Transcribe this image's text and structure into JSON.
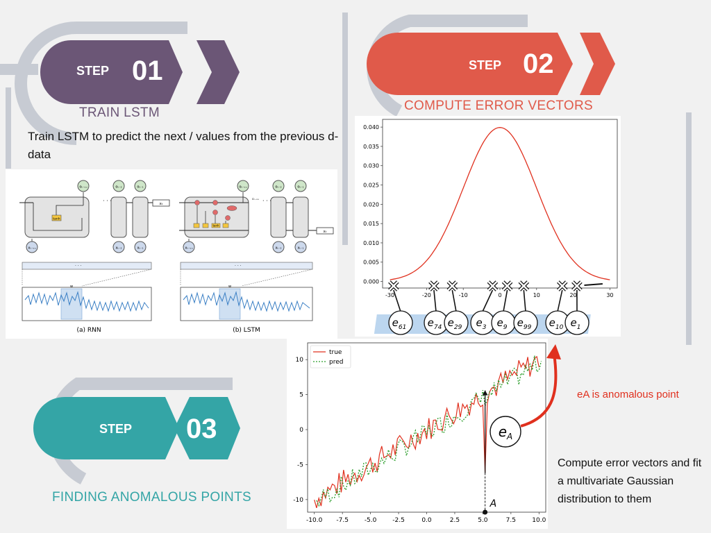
{
  "colors": {
    "step1": "#6b5676",
    "step2": "#e05a4a",
    "step3": "#34a5a6",
    "arc": "#c7cbd3",
    "red_curve": "#e0301e",
    "pred_green": "#2a9d2a",
    "blue_line": "#3a7fc4",
    "light_blue": "#bcd6ef"
  },
  "step1": {
    "word": "STEP",
    "number": "01",
    "title": "TRAIN LSTM",
    "description": "Train LSTM to predict the next / values from the previous d-data"
  },
  "step2": {
    "word": "STEP",
    "number": "02",
    "title": "COMPUTE ERROR VECTORS"
  },
  "step3": {
    "word": "STEP",
    "number": "03",
    "title": "FINDING ANOMALOUS POINTS"
  },
  "architecture": {
    "rnn_caption": "(a) RNN",
    "lstm_caption": "(b) LSTM",
    "dots": "· · ·",
    "window_label": "w",
    "rnn_outputs": [
      "oₜ₋ᵥᵤ",
      "oₜ₋₂",
      "oₜ₋₁",
      "xₜ"
    ],
    "rnn_inputs": [
      "xₜ₋ᵥᵤ",
      "xₜ₋₂",
      "xₜ₋₁"
    ],
    "lstm_outputs": [
      "oₜ₋ᵥᵤ",
      "oₜ₋₂",
      "oₜ₋₁",
      "xₜ"
    ],
    "lstm_inputs": [
      "xₜ₋ᵥᵤ",
      "xₜ₋₂",
      "xₜ₋₁"
    ],
    "rnn_cell_label": "tanh",
    "lstm_cell_label": "tanh",
    "lstm_side_label": "cₜ₋ᵥᵤ"
  },
  "gaussian": {
    "y_ticks": [
      "0.040",
      "0.035",
      "0.030",
      "0.025",
      "0.020",
      "0.015",
      "0.010",
      "0.005",
      "0.000"
    ],
    "x_ticks": [
      "-30",
      "-20",
      "-10",
      "0",
      "10",
      "20",
      "30"
    ],
    "error_labels": [
      "e61",
      "e74",
      "e29",
      "e3",
      "e9",
      "e99",
      "e10",
      "e1"
    ]
  },
  "chart_data": {
    "type": "line",
    "series": [
      {
        "name": "true",
        "color": "#e0301e"
      },
      {
        "name": "pred",
        "color": "#2a9d2a"
      }
    ],
    "x_range": [
      -10,
      10
    ],
    "y_range": [
      -11,
      12
    ],
    "x_ticks": [
      "-10.0",
      "-7.5",
      "-5.0",
      "-2.5",
      "0.0",
      "2.5",
      "5.0",
      "7.5",
      "10.0"
    ],
    "y_ticks": [
      "10",
      "5",
      "0",
      "-5",
      "-10"
    ],
    "anomaly_x": 5.2,
    "anomaly_y": -6.2,
    "point_label": "A",
    "circle_label": "eA"
  },
  "annotation": {
    "anomalous_text": "eA is anomalous point",
    "compute_text": "Compute error vectors and fit a multivariate Gaussian distribution to them"
  }
}
